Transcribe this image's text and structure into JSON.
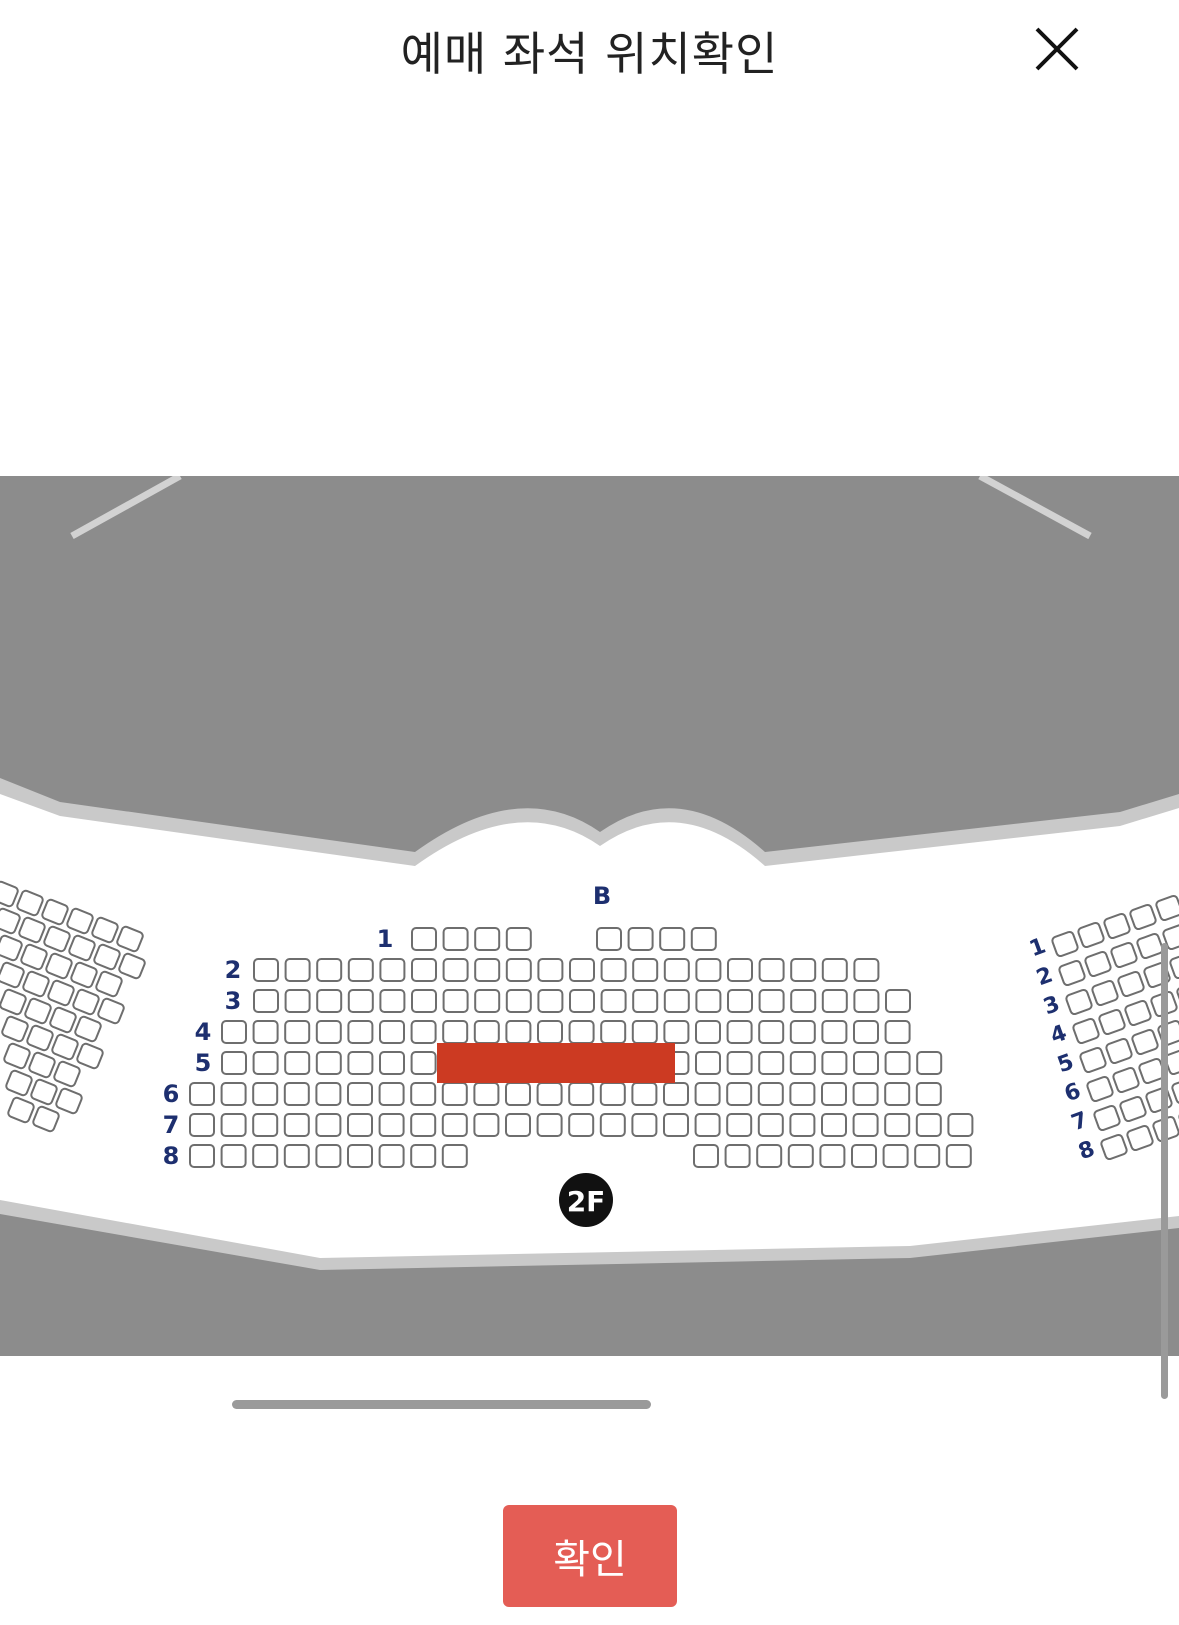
{
  "header": {
    "title": "예매 좌석 위치확인",
    "close_icon": "close-icon"
  },
  "seat_map": {
    "floor_badge": "2F",
    "section_label": "B",
    "rows": [
      "1",
      "2",
      "3",
      "4",
      "5",
      "6",
      "7",
      "8"
    ],
    "left_block_rows": 9,
    "right_block_rows": [
      "1",
      "2",
      "3",
      "4",
      "5",
      "6",
      "7",
      "8"
    ],
    "highlight_row": "5",
    "colors": {
      "background": "#8c8c8c",
      "floor": "#ffffff",
      "seat_outline": "#6e6e6e",
      "row_label": "#1d2f6f",
      "highlight": "#cc3a22"
    }
  },
  "footer": {
    "confirm_label": "확인",
    "confirm_color": "#e45d55"
  }
}
